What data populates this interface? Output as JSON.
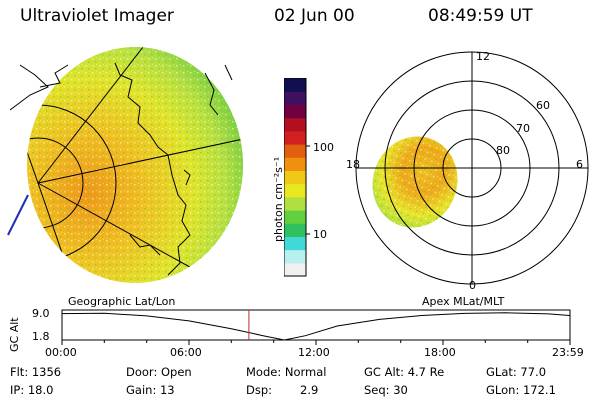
{
  "header": {
    "title": "Ultraviolet Imager",
    "date": "02 Jun 00",
    "time": "08:49:59 UT"
  },
  "colorbar": {
    "unit_label": "photon cm⁻²s⁻¹",
    "tick_high": "100",
    "tick_low": "10",
    "colors": [
      "#f0f0f0",
      "#b8f0f0",
      "#40d8d8",
      "#30c060",
      "#60d040",
      "#b0e040",
      "#e8e820",
      "#f0c818",
      "#f09010",
      "#e06010",
      "#d02020",
      "#b01020",
      "#700040",
      "#401060",
      "#101050"
    ]
  },
  "map_labels": {
    "left": "Geographic Lat/Lon",
    "right": "Apex MLat/MLT"
  },
  "polar": {
    "mlt_labels": {
      "top": "12",
      "left": "18",
      "right": "6",
      "bottom": "0"
    },
    "lat_labels": [
      "60",
      "70",
      "80"
    ]
  },
  "orbit": {
    "ylabel": "GC Alt",
    "y_ticks": [
      "9.0",
      "1.8"
    ],
    "x_ticks": [
      "00:00",
      "06:00",
      "12:00",
      "18:00",
      "23:59"
    ],
    "ylim": [
      1.8,
      9.0
    ],
    "x_hours": [
      0,
      2,
      4,
      6,
      8,
      9.5,
      10.5,
      11.5,
      13,
      15,
      17,
      19,
      21,
      23,
      23.98
    ],
    "altitude": [
      8.6,
      8.7,
      8.0,
      6.7,
      4.7,
      2.9,
      1.8,
      2.9,
      5.4,
      7.1,
      8.1,
      8.65,
      8.8,
      8.5,
      8.1
    ],
    "current_hour": 8.83
  },
  "status": {
    "flt": "Flt: 1356",
    "ip": "IP: 18.0",
    "door": "Door: Open",
    "gain": "Gain: 13",
    "mode": "Mode: Normal",
    "dsp_label": "Dsp:",
    "dsp_value": "2.9",
    "gcalt": "GC Alt: 4.7 Re",
    "seq": "Seq: 30",
    "glat": "GLat: 77.0",
    "glon": "GLon: 172.1"
  }
}
